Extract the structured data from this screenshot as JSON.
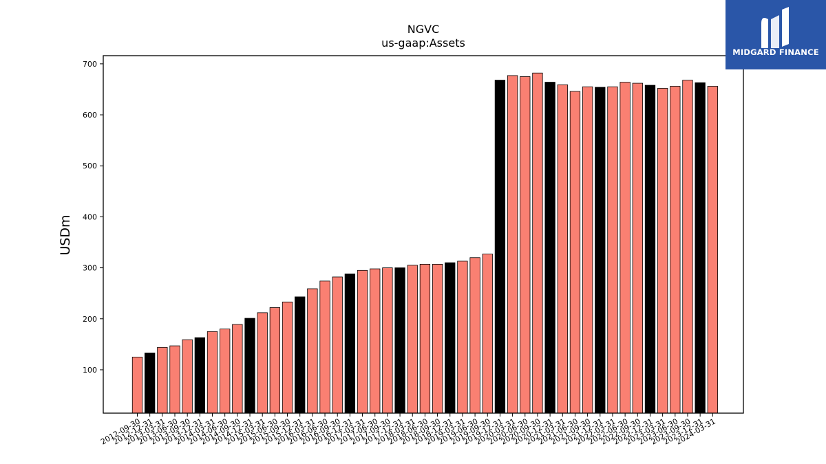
{
  "chart_data": {
    "type": "bar",
    "title": "NGVC",
    "subtitle": "us-gaap:Assets",
    "xlabel": "",
    "ylabel": "USDm",
    "ylim": [
      15,
      716
    ],
    "yticks": [
      100,
      200,
      300,
      400,
      500,
      600,
      700
    ],
    "grid": false,
    "colors": {
      "default": "#fa8072",
      "highlight": "#000000",
      "edge": "#000000"
    },
    "categories": [
      "2012-09-30",
      "2012-12-31",
      "2013-03-31",
      "2013-06-30",
      "2013-09-30",
      "2013-12-31",
      "2014-03-31",
      "2014-06-30",
      "2014-09-30",
      "2014-12-31",
      "2015-03-31",
      "2015-06-30",
      "2015-09-30",
      "2015-12-31",
      "2016-03-31",
      "2016-06-30",
      "2016-09-30",
      "2016-12-31",
      "2017-03-31",
      "2017-06-30",
      "2017-09-30",
      "2017-12-31",
      "2018-03-31",
      "2018-06-30",
      "2018-09-30",
      "2018-12-31",
      "2019-03-31",
      "2019-06-30",
      "2019-09-30",
      "2019-12-31",
      "2020-03-31",
      "2020-06-30",
      "2020-09-30",
      "2020-12-31",
      "2021-03-31",
      "2021-06-30",
      "2021-09-30",
      "2021-12-31",
      "2022-03-31",
      "2022-06-30",
      "2022-09-30",
      "2022-12-31",
      "2023-03-31",
      "2023-06-30",
      "2023-09-30",
      "2023-12-31",
      "2024-03-31"
    ],
    "values": [
      125,
      133,
      144,
      147,
      159,
      163,
      175,
      180,
      189,
      201,
      212,
      222,
      233,
      243,
      259,
      274,
      282,
      288,
      295,
      298,
      300,
      300,
      305,
      307,
      307,
      310,
      313,
      320,
      327,
      668,
      677,
      675,
      682,
      664,
      659,
      646,
      655,
      654,
      655,
      664,
      662,
      658,
      652,
      656,
      668,
      663,
      656
    ],
    "highlight": [
      false,
      true,
      false,
      false,
      false,
      true,
      false,
      false,
      false,
      true,
      false,
      false,
      false,
      true,
      false,
      false,
      false,
      true,
      false,
      false,
      false,
      true,
      false,
      false,
      false,
      true,
      false,
      false,
      false,
      true,
      false,
      false,
      false,
      true,
      false,
      false,
      false,
      true,
      false,
      false,
      false,
      true,
      false,
      false,
      false,
      true,
      false
    ]
  },
  "brand": {
    "name": "MIDGARD FINANCE",
    "logo_icon": "midgard-logo-icon"
  }
}
